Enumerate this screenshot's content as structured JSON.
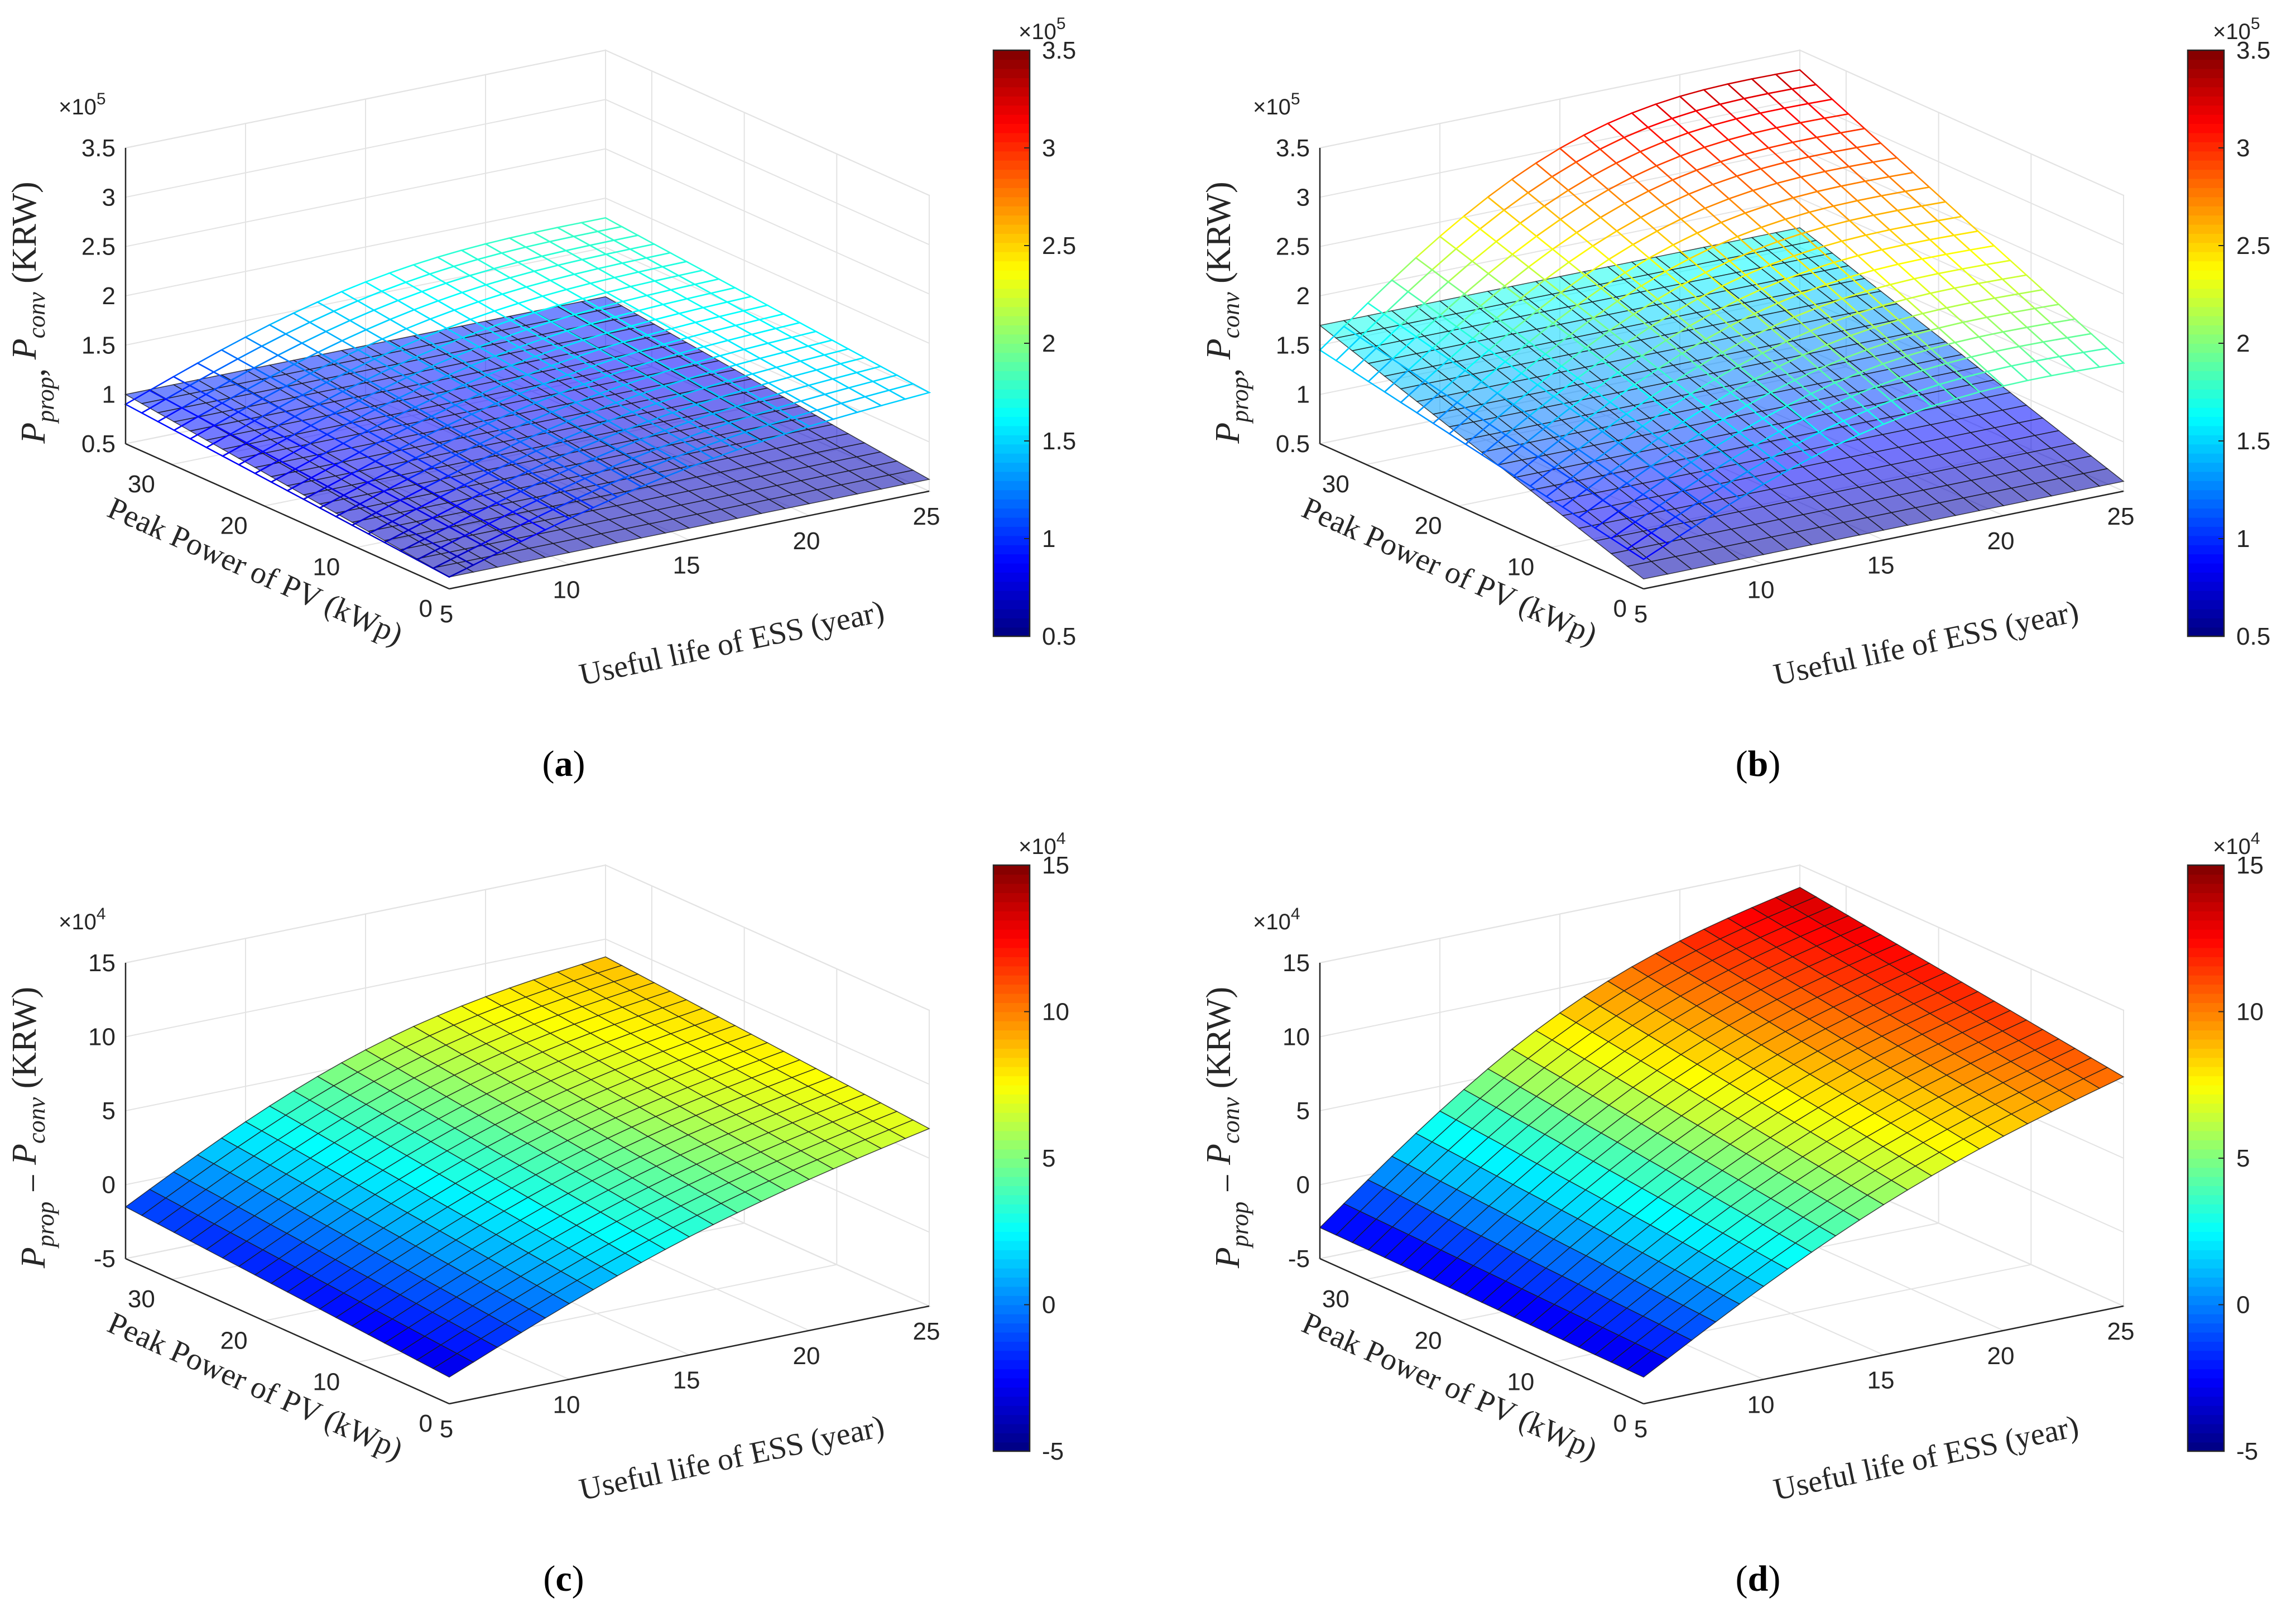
{
  "figure": {
    "colormap": "jet",
    "panels_order": [
      "a",
      "b",
      "c",
      "d"
    ]
  },
  "chart_data": [
    {
      "id": "a",
      "type": "surface3d",
      "caption": "(a)",
      "caption_letter": "a",
      "zlabel_parts": [
        "P",
        "prop",
        ", ",
        "P",
        "conv",
        "  (KRW)"
      ],
      "xlabel": "Useful life of ESS (year)",
      "ylabel": "Peak Power of PV (kWp)",
      "x_range": [
        5,
        25
      ],
      "y_range": [
        0,
        35
      ],
      "z_range": [
        0.5,
        3.5
      ],
      "x_ticks": [
        "5",
        "10",
        "15",
        "20",
        "25"
      ],
      "x_tick_values": [
        5,
        10,
        15,
        20,
        25
      ],
      "y_ticks": [
        "0",
        "10",
        "20",
        "30"
      ],
      "y_tick_values": [
        0,
        10,
        20,
        30
      ],
      "z_ticks": [
        "0.5",
        "1",
        "1.5",
        "2",
        "2.5",
        "3",
        "3.5"
      ],
      "z_tick_values": [
        0.5,
        1,
        1.5,
        2,
        2.5,
        3,
        3.5
      ],
      "z_exponent_base": "×10",
      "z_exponent_power": "5",
      "colorbar_ticks": [
        "0.5",
        "1",
        "1.5",
        "2",
        "2.5",
        "3",
        "3.5"
      ],
      "colorbar_tick_values": [
        0.5,
        1,
        1.5,
        2,
        2.5,
        3,
        3.5
      ],
      "colorbar_range": [
        0.5,
        3.5
      ],
      "colorbar_exponent_base": "×10",
      "colorbar_exponent_power": "5",
      "series": [
        {
          "name": "P_prop",
          "style": "filled",
          "alpha": 0.55,
          "corners": {
            "x5_y0": 0.62,
            "x5_y35": 1.0,
            "x25_y0": 0.62,
            "x25_y35": 1.0
          },
          "shape": "flat"
        },
        {
          "name": "P_conv",
          "style": "wire",
          "corners": {
            "x5_y0": 0.62,
            "x5_y35": 0.9,
            "x25_y0": 1.5,
            "x25_y35": 1.8
          },
          "shape": "rising"
        }
      ]
    },
    {
      "id": "b",
      "type": "surface3d",
      "caption": "(b)",
      "caption_letter": "b",
      "zlabel_parts": [
        "P",
        "prop",
        ", ",
        "P",
        "conv",
        "  (KRW)"
      ],
      "xlabel": "Useful life of ESS (year)",
      "ylabel": "Peak Power of PV (kWp)",
      "x_range": [
        5,
        25
      ],
      "y_range": [
        0,
        35
      ],
      "z_range": [
        0.5,
        3.5
      ],
      "x_ticks": [
        "5",
        "10",
        "15",
        "20",
        "25"
      ],
      "x_tick_values": [
        5,
        10,
        15,
        20,
        25
      ],
      "y_ticks": [
        "0",
        "10",
        "20",
        "30"
      ],
      "y_tick_values": [
        0,
        10,
        20,
        30
      ],
      "z_ticks": [
        "0.5",
        "1",
        "1.5",
        "2",
        "2.5",
        "3",
        "3.5"
      ],
      "z_tick_values": [
        0.5,
        1,
        1.5,
        2,
        2.5,
        3,
        3.5
      ],
      "z_exponent_base": "×10",
      "z_exponent_power": "5",
      "colorbar_ticks": [
        "0.5",
        "1",
        "1.5",
        "2",
        "2.5",
        "3",
        "3.5"
      ],
      "colorbar_tick_values": [
        0.5,
        1,
        1.5,
        2,
        2.5,
        3,
        3.5
      ],
      "colorbar_range": [
        0.5,
        3.5
      ],
      "colorbar_exponent_base": "×10",
      "colorbar_exponent_power": "5",
      "series": [
        {
          "name": "P_prop",
          "style": "filled",
          "alpha": 0.55,
          "corners": {
            "x5_y0": 0.6,
            "x5_y35": 1.7,
            "x25_y0": 0.6,
            "x25_y35": 1.7
          },
          "shape": "flat"
        },
        {
          "name": "P_conv",
          "style": "wire",
          "corners": {
            "x5_y0": 0.8,
            "x5_y35": 1.45,
            "x25_y0": 1.8,
            "x25_y35": 3.3
          },
          "shape": "rising"
        }
      ]
    },
    {
      "id": "c",
      "type": "surface3d",
      "caption": "(c)",
      "caption_letter": "c",
      "zlabel_parts": [
        "P",
        "prop",
        " − ",
        "P",
        "conv",
        "  (KRW)"
      ],
      "xlabel": "Useful life of ESS (year)",
      "ylabel": "Peak Power of PV (kWp)",
      "x_range": [
        5,
        25
      ],
      "y_range": [
        0,
        35
      ],
      "z_range": [
        -5,
        15
      ],
      "x_ticks": [
        "5",
        "10",
        "15",
        "20",
        "25"
      ],
      "x_tick_values": [
        5,
        10,
        15,
        20,
        25
      ],
      "y_ticks": [
        "0",
        "10",
        "20",
        "30"
      ],
      "y_tick_values": [
        0,
        10,
        20,
        30
      ],
      "z_ticks": [
        "-5",
        "0",
        "5",
        "10",
        "15"
      ],
      "z_tick_values": [
        -5,
        0,
        5,
        10,
        15
      ],
      "z_exponent_base": "×10",
      "z_exponent_power": "4",
      "colorbar_ticks": [
        "-5",
        "0",
        "5",
        "10",
        "15"
      ],
      "colorbar_tick_values": [
        -5,
        0,
        5,
        10,
        15
      ],
      "colorbar_range": [
        -5,
        15
      ],
      "colorbar_exponent_base": "×10",
      "colorbar_exponent_power": "4",
      "series": [
        {
          "name": "P_prop - P_conv",
          "style": "filled",
          "alpha": 1.0,
          "corners": {
            "x5_y0": -3.2,
            "x5_y35": -1.5,
            "x25_y0": 7.0,
            "x25_y35": 8.8
          },
          "shape": "difference"
        }
      ]
    },
    {
      "id": "d",
      "type": "surface3d",
      "caption": "(d)",
      "caption_letter": "d",
      "zlabel_parts": [
        "P",
        "prop",
        " − ",
        "P",
        "conv",
        "  (KRW)"
      ],
      "xlabel": "Useful life of ESS (year)",
      "ylabel": "Peak Power of PV (kWp)",
      "x_range": [
        5,
        25
      ],
      "y_range": [
        0,
        35
      ],
      "z_range": [
        -5,
        15
      ],
      "x_ticks": [
        "5",
        "10",
        "15",
        "20",
        "25"
      ],
      "x_tick_values": [
        5,
        10,
        15,
        20,
        25
      ],
      "y_ticks": [
        "0",
        "10",
        "20",
        "30"
      ],
      "y_tick_values": [
        0,
        10,
        20,
        30
      ],
      "z_ticks": [
        "-5",
        "0",
        "5",
        "10",
        "15"
      ],
      "z_tick_values": [
        -5,
        0,
        5,
        10,
        15
      ],
      "z_exponent_base": "×10",
      "z_exponent_power": "4",
      "colorbar_ticks": [
        "-5",
        "0",
        "5",
        "10",
        "15"
      ],
      "colorbar_tick_values": [
        -5,
        0,
        5,
        10,
        15
      ],
      "colorbar_range": [
        -5,
        15
      ],
      "colorbar_exponent_base": "×10",
      "colorbar_exponent_power": "4",
      "series": [
        {
          "name": "P_prop - P_conv",
          "style": "filled",
          "alpha": 1.0,
          "corners": {
            "x5_y0": -3.2,
            "x5_y35": -2.9,
            "x25_y0": 10.5,
            "x25_y35": 13.5
          },
          "shape": "difference"
        }
      ]
    }
  ]
}
